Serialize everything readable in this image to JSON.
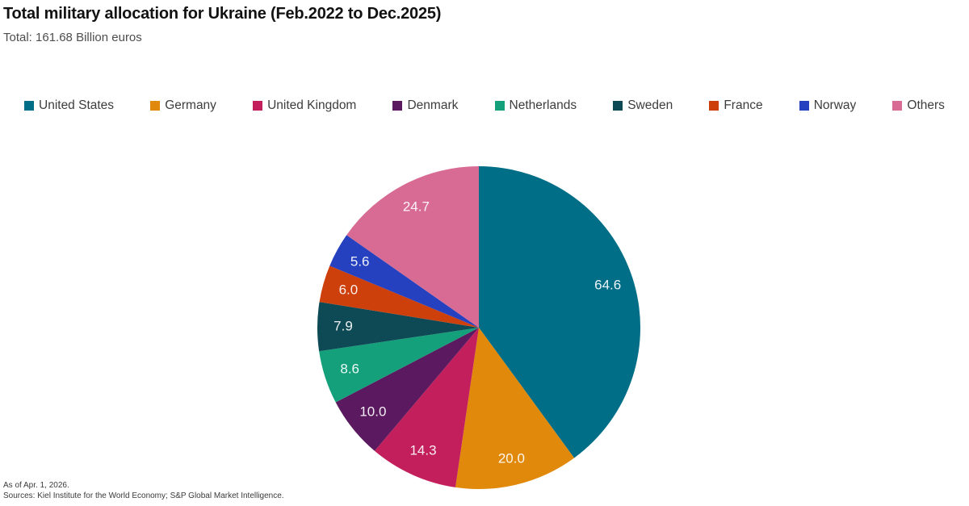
{
  "header": {
    "title": "Total military allocation for Ukraine (Feb.2022 to Dec.2025)",
    "subtitle": "Total: 161.68 Billion euros"
  },
  "chart_data": {
    "type": "pie",
    "title": "Total military allocation for Ukraine (Feb.2022 to Dec.2025)",
    "subtitle": "Total: 161.68 Billion euros",
    "total_value": 161.68,
    "unit": "Billion euros",
    "legend_position": "top",
    "start_angle": "12 o'clock",
    "direction": "clockwise",
    "labels": [
      "United States",
      "Germany",
      "United Kingdom",
      "Denmark",
      "Netherlands",
      "Sweden",
      "France",
      "Norway",
      "Others"
    ],
    "values": [
      64.6,
      20.0,
      14.3,
      10.0,
      8.6,
      7.9,
      6.0,
      5.6,
      24.7
    ],
    "value_labels": [
      "64.6",
      "20.0",
      "14.3",
      "10.0",
      "8.6",
      "7.9",
      "6.0",
      "5.6",
      "24.7"
    ],
    "colors": [
      "#006e87",
      "#e0890a",
      "#c21f5c",
      "#5b1a60",
      "#14a07b",
      "#0d4a55",
      "#cd3f0b",
      "#2541bf",
      "#d76b93"
    ],
    "value_label_color": "#ffffff"
  },
  "footer": {
    "as_of": "As of Apr. 1, 2026.",
    "sources": "Sources: Kiel Institute for the World Economy; S&P Global Market Intelligence."
  }
}
